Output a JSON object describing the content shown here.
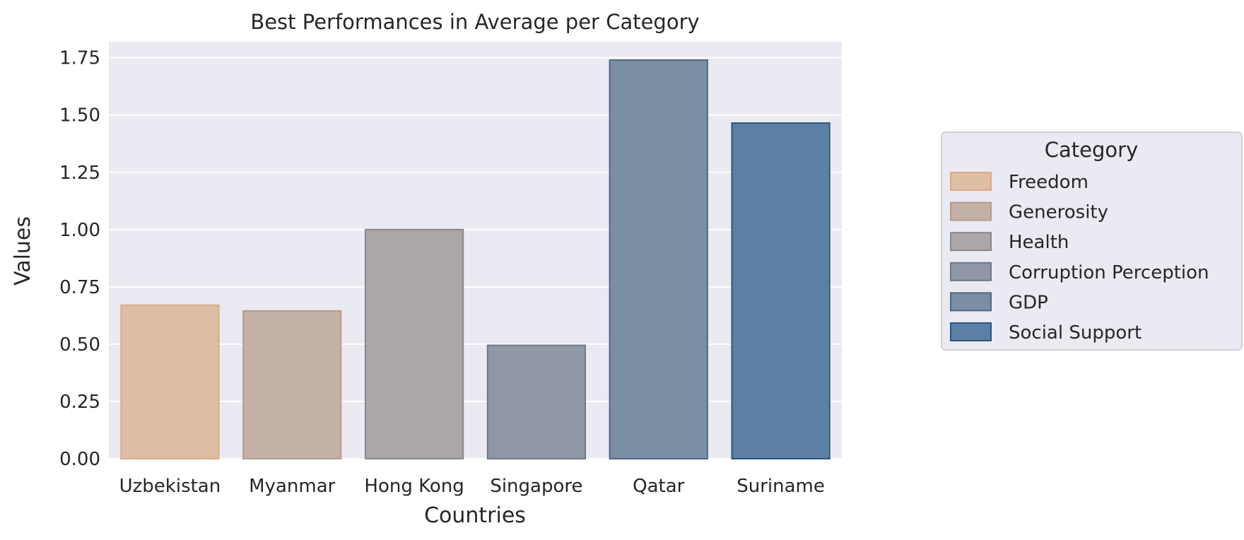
{
  "chart_data": {
    "type": "bar",
    "title": "Best Performances in Average per Category",
    "xlabel": "Countries",
    "ylabel": "Values",
    "categories": [
      "Uzbekistan",
      "Myanmar",
      "Hong Kong",
      "Singapore",
      "Qatar",
      "Suriname"
    ],
    "values": [
      0.67,
      0.645,
      1.0,
      0.495,
      1.74,
      1.465
    ],
    "series_category": [
      "Freedom",
      "Generosity",
      "Health",
      "Corruption Perception",
      "GDP",
      "Social Support"
    ],
    "ylim": [
      0,
      1.82
    ],
    "yticks": [
      "0.00",
      "0.25",
      "0.50",
      "0.75",
      "1.00",
      "1.25",
      "1.50",
      "1.75"
    ],
    "ytick_values": [
      0,
      0.25,
      0.5,
      0.75,
      1.0,
      1.25,
      1.5,
      1.75
    ],
    "grid": true,
    "legend": {
      "title": "Category",
      "placement": "right",
      "entries": [
        "Freedom",
        "Generosity",
        "Health",
        "Corruption Perception",
        "GDP",
        "Social Support"
      ]
    },
    "colors": {
      "fill": [
        "#dfbea6",
        "#c4b1a5",
        "#aba6a8",
        "#9198a5",
        "#7a8fa3",
        "#5c80a3"
      ],
      "edge": [
        "#d8ab8a",
        "#b39b8c",
        "#8b8688",
        "#6c7888",
        "#4f6784",
        "#2d5680"
      ],
      "plot_background": "#eaeaf2",
      "grid": "#ffffff",
      "text": "#262626"
    }
  }
}
